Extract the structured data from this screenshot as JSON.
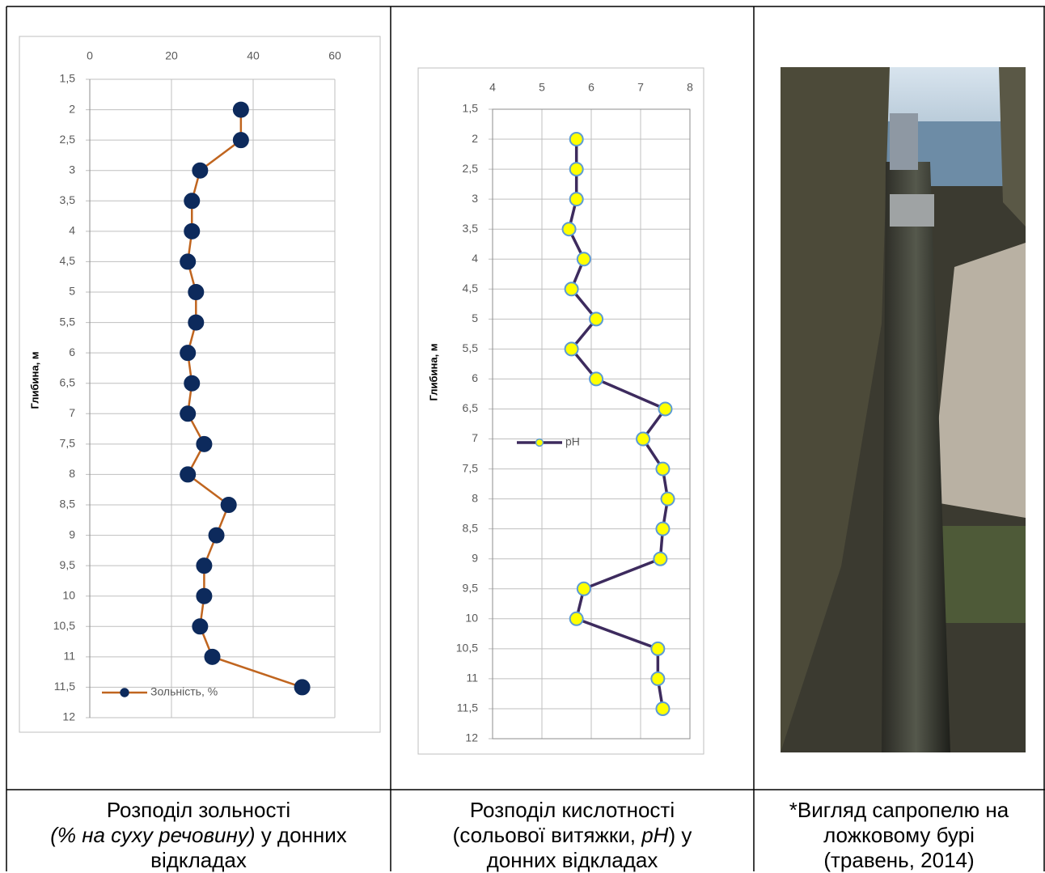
{
  "chart_data": [
    {
      "type": "line",
      "y_label": "Глибина, м",
      "x_axis_position": "top",
      "y_inverted": true,
      "grid": true,
      "legend": "lower left",
      "xlim": [
        0,
        60
      ],
      "xticks": [
        0,
        20,
        40,
        60
      ],
      "ylim": [
        1.5,
        12
      ],
      "yticks": [
        {
          "value": 1.5,
          "label": "1,5"
        },
        2,
        {
          "value": 2.5,
          "label": "2,5"
        },
        3,
        {
          "value": 3.5,
          "label": "3,5"
        },
        4,
        {
          "value": 4.5,
          "label": "4,5"
        },
        5,
        {
          "value": 5.5,
          "label": "5,5"
        },
        6,
        {
          "value": 6.5,
          "label": "6,5"
        },
        7,
        {
          "value": 7.5,
          "label": "7,5"
        },
        8,
        {
          "value": 8.5,
          "label": "8,5"
        },
        9,
        {
          "value": 9.5,
          "label": "9,5"
        },
        10,
        {
          "value": 10.5,
          "label": "10,5"
        },
        11,
        {
          "value": 11.5,
          "label": "11,5"
        },
        12
      ],
      "y": [
        2,
        2.5,
        3,
        3.5,
        4,
        4.5,
        5,
        5.5,
        6,
        6.5,
        7,
        7.5,
        8,
        8.5,
        9,
        9.5,
        10,
        10.5,
        11,
        11.5
      ],
      "series": [
        {
          "name": "Зольність, %",
          "color": "#c0651f",
          "marker_color": "#0d2a5c",
          "values": [
            37,
            37,
            27,
            25,
            25,
            24,
            26,
            26,
            24,
            25,
            24,
            28,
            24,
            34,
            31,
            28,
            28,
            27,
            30,
            52
          ]
        }
      ]
    },
    {
      "type": "line",
      "y_label": "Глибина, м",
      "x_axis_position": "top",
      "y_inverted": true,
      "grid": true,
      "legend": "center left",
      "xlim": [
        4,
        8
      ],
      "xticks": [
        4,
        5,
        6,
        7,
        8
      ],
      "ylim": [
        1.5,
        12
      ],
      "yticks": [
        {
          "value": 1.5,
          "label": "1,5"
        },
        2,
        {
          "value": 2.5,
          "label": "2,5"
        },
        3,
        {
          "value": 3.5,
          "label": "3,5"
        },
        4,
        {
          "value": 4.5,
          "label": "4,5"
        },
        5,
        {
          "value": 5.5,
          "label": "5,5"
        },
        6,
        {
          "value": 6.5,
          "label": "6,5"
        },
        7,
        {
          "value": 7.5,
          "label": "7,5"
        },
        8,
        {
          "value": 8.5,
          "label": "8,5"
        },
        9,
        {
          "value": 9.5,
          "label": "9,5"
        },
        10,
        {
          "value": 10.5,
          "label": "10,5"
        },
        11,
        {
          "value": 11.5,
          "label": "11,5"
        },
        12
      ],
      "y": [
        2,
        2.5,
        3,
        3.5,
        4,
        4.5,
        5,
        5.5,
        6,
        6.5,
        7,
        7.5,
        8,
        8.5,
        9,
        9.5,
        10,
        10.5,
        11,
        11.5
      ],
      "series": [
        {
          "name": "pH",
          "color": "#3d2b5e",
          "marker_color": "#ffff00",
          "marker_edge": "#5b9bd5",
          "values": [
            5.7,
            5.7,
            5.7,
            5.55,
            5.85,
            5.6,
            6.1,
            5.6,
            6.1,
            7.5,
            7.05,
            7.45,
            7.55,
            7.45,
            7.4,
            5.85,
            5.7,
            7.35,
            7.35,
            7.45
          ]
        }
      ]
    }
  ],
  "table": {
    "captions": [
      {
        "lines": [
          [
            {
              "text": "Розподіл зольності"
            }
          ],
          [
            {
              "text": "(% на суху речовину)",
              "italic": true
            },
            {
              "text": " у донних"
            }
          ],
          [
            {
              "text": "відкладах"
            }
          ]
        ]
      },
      {
        "lines": [
          [
            {
              "text": "Розподіл кислотності"
            }
          ],
          [
            {
              "text": "(сольової витяжки, "
            },
            {
              "text": "pH",
              "italic": true
            },
            {
              "text": ") у"
            }
          ],
          [
            {
              "text": "донних відкладах"
            }
          ]
        ]
      },
      {
        "lines": [
          [
            {
              "text": "*Вигляд сапропелю на"
            }
          ],
          [
            {
              "text": "ложковому бурі"
            }
          ],
          [
            {
              "text": "(травень, 2014)"
            }
          ]
        ]
      }
    ]
  }
}
